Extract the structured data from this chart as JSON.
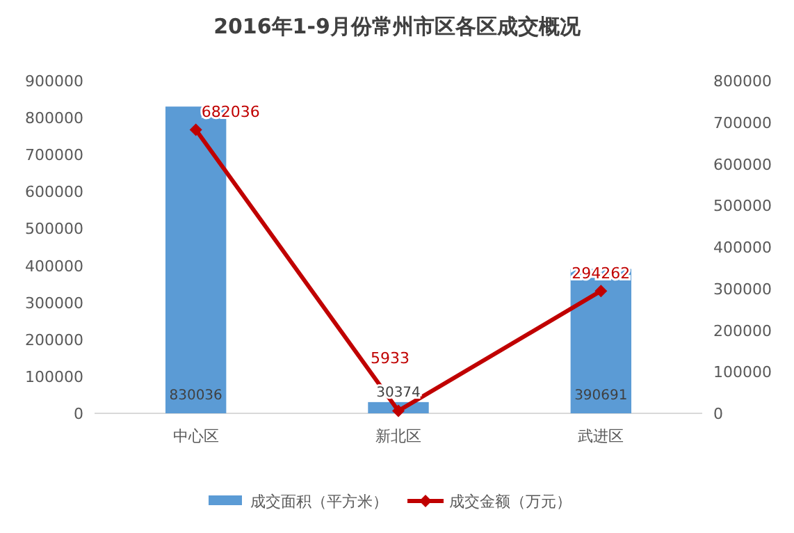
{
  "chart_data": {
    "type": "bar",
    "title": "2016年1-9月份常州市区各区成交概况",
    "categories": [
      "中心区",
      "新北区",
      "武进区"
    ],
    "series": [
      {
        "name": "成交面积（平方米）",
        "type": "bar",
        "color": "#5b9bd5",
        "values": [
          830036,
          30374,
          390691
        ]
      },
      {
        "name": "成交金额（万元）",
        "type": "line",
        "axis": "y2",
        "color": "#c00000",
        "marker": "diamond",
        "values": [
          682036,
          5933,
          294262
        ]
      }
    ],
    "ylim": [
      0,
      900000
    ],
    "yticks": [
      0,
      100000,
      200000,
      300000,
      400000,
      500000,
      600000,
      700000,
      800000,
      900000
    ],
    "y2lim": [
      0,
      800000
    ],
    "y2ticks": [
      0,
      100000,
      200000,
      300000,
      400000,
      500000,
      600000,
      700000,
      800000
    ],
    "data_labels": true,
    "legend": "bottom",
    "grid": false
  }
}
